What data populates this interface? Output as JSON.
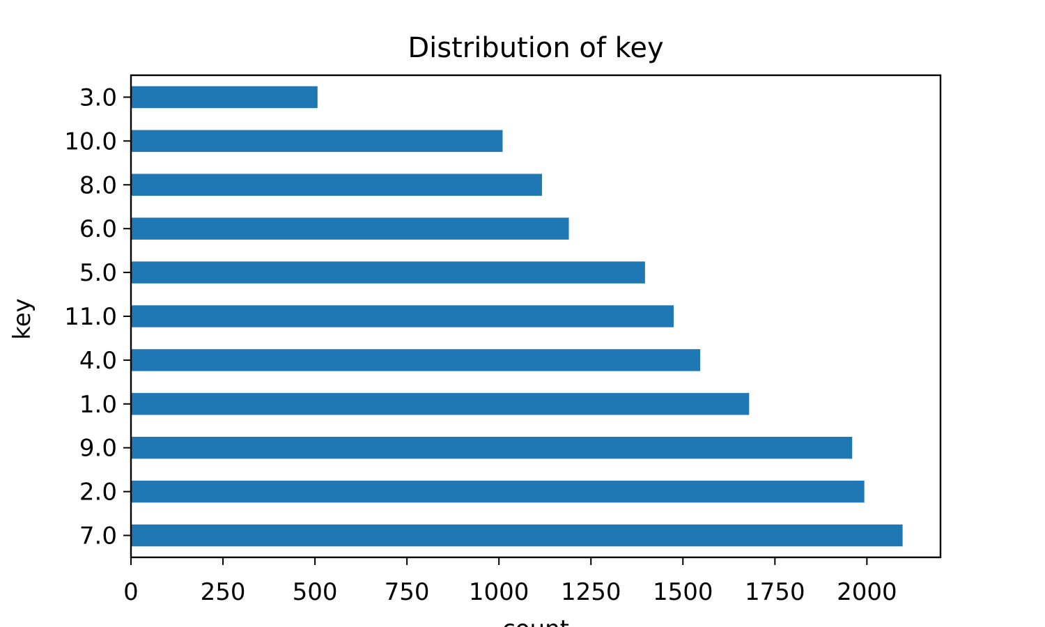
{
  "chart_data": {
    "type": "bar",
    "orientation": "horizontal",
    "title": "Distribution of key",
    "xlabel": "count",
    "ylabel": "key",
    "categories": [
      "3.0",
      "10.0",
      "8.0",
      "6.0",
      "5.0",
      "11.0",
      "4.0",
      "1.0",
      "9.0",
      "2.0",
      "7.0"
    ],
    "values": [
      507,
      1010,
      1117,
      1190,
      1397,
      1475,
      1547,
      1680,
      1960,
      1993,
      2097
    ],
    "xlim": [
      0,
      2200
    ],
    "xticks": [
      "0",
      "250",
      "500",
      "750",
      "1000",
      "1250",
      "1500",
      "1750",
      "2000"
    ],
    "bar_color": "#1f77b4",
    "grid": false,
    "legend": "none"
  }
}
